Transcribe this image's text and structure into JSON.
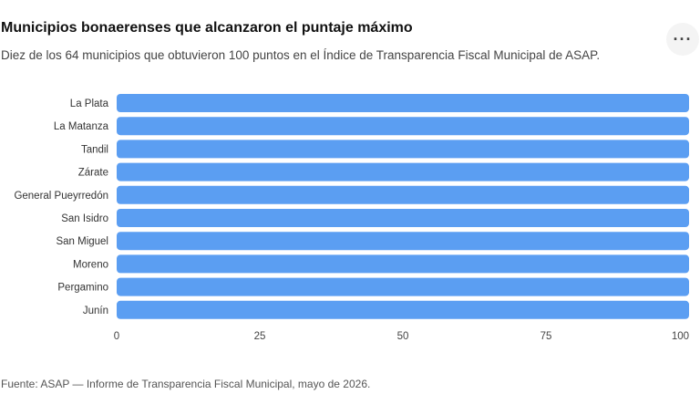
{
  "header": {
    "title": "Municipios bonaerenses que alcanzaron el puntaje máximo",
    "subtitle": "Diez de los 64 municipios que obtuvieron 100 puntos en el Índice de Transparencia Fiscal Municipal de ASAP.",
    "more_icon": "more-horizontal-icon",
    "more_glyph": "···"
  },
  "footer": {
    "source": "Fuente: ASAP — Informe de Transparencia Fiscal Municipal, mayo de 2026."
  },
  "chart_data": {
    "type": "bar",
    "orientation": "horizontal",
    "categories": [
      "La Plata",
      "La Matanza",
      "Tandil",
      "Zárate",
      "General Pueyrredón",
      "San Isidro",
      "San Miguel",
      "Moreno",
      "Pergamino",
      "Junín"
    ],
    "values": [
      100,
      100,
      100,
      100,
      100,
      100,
      100,
      100,
      100,
      100
    ],
    "xlim": [
      0,
      100
    ],
    "xticks": [
      0,
      25,
      50,
      75,
      100
    ],
    "xlabel": "",
    "ylabel": "",
    "grid": false,
    "bar_color": "#5b9ef2"
  }
}
